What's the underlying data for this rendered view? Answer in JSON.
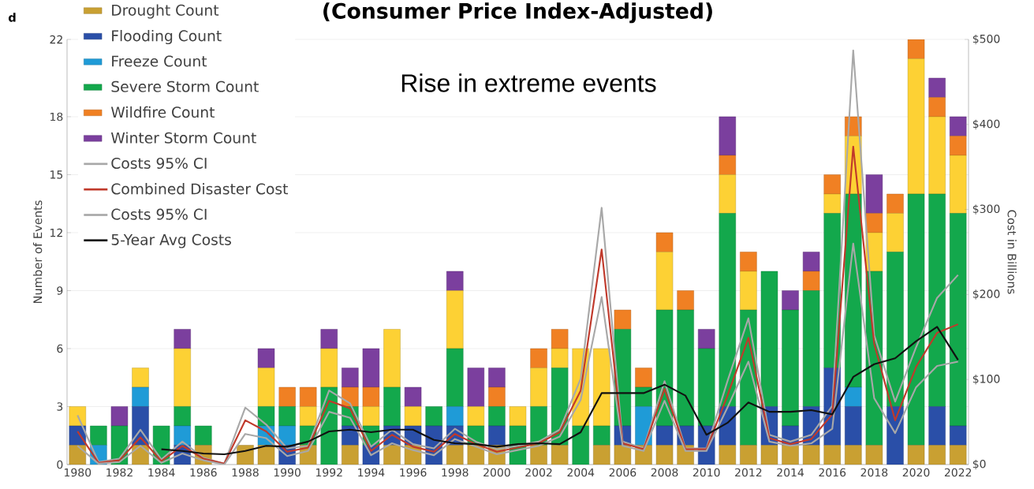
{
  "chart_data": {
    "type": "bar",
    "stacked": true,
    "title": "(Consumer Price Index-Adjusted)",
    "annotations": [
      "Rise in extreme events",
      "d"
    ],
    "ylabel": "Number of Events",
    "y2label": "Cost in Billions",
    "categories": [
      "1980",
      null,
      "1982",
      null,
      "1984",
      null,
      "1986",
      null,
      "1988",
      null,
      "1990",
      null,
      "1992",
      null,
      "1994",
      null,
      "1996",
      null,
      "1998",
      null,
      "2000",
      null,
      "2002",
      null,
      "2004",
      null,
      "2006",
      null,
      "2008",
      null,
      "2010",
      null,
      "2012",
      null,
      "2014",
      null,
      "2016",
      null,
      "2018",
      null,
      "2020",
      null,
      "2022"
    ],
    "ylim": [
      0,
      22
    ],
    "yticks": [
      0,
      3,
      6,
      9,
      12,
      15,
      18,
      22
    ],
    "y2lim": [
      0,
      500
    ],
    "y2ticks": [
      {
        "value": 0,
        "label": "$0"
      },
      {
        "value": 100,
        "label": "$100"
      },
      {
        "value": 200,
        "label": "$200"
      },
      {
        "value": 300,
        "label": "$300"
      },
      {
        "value": 400,
        "label": "$400"
      },
      {
        "value": 500,
        "label": "$500"
      }
    ],
    "grid": "y",
    "legend": "top left",
    "series": [
      {
        "name": "Drought Count",
        "type": "bar",
        "color": "#c9a032",
        "values": [
          1,
          0,
          0,
          1,
          0,
          0,
          1,
          0,
          1,
          1,
          0,
          1,
          0,
          1,
          0,
          1,
          1,
          0,
          1,
          1,
          1,
          0,
          1,
          1,
          0,
          1,
          1,
          1,
          1,
          1,
          0,
          1,
          1,
          1,
          1,
          1,
          1,
          1,
          1,
          0,
          1,
          1,
          1
        ]
      },
      {
        "name": "Flooding Count",
        "type": "bar",
        "color": "#2a4fa8",
        "values": [
          1,
          0,
          0,
          2,
          0,
          1,
          0,
          0,
          0,
          0,
          1,
          0,
          0,
          1,
          1,
          1,
          1,
          2,
          1,
          0,
          1,
          0,
          0,
          0,
          0,
          0,
          1,
          0,
          1,
          1,
          2,
          2,
          0,
          2,
          1,
          2,
          4,
          2,
          0,
          3,
          0,
          2,
          1
        ]
      },
      {
        "name": "Freeze Count",
        "type": "bar",
        "color": "#1f9bd7",
        "values": [
          0,
          1,
          0,
          1,
          0,
          1,
          0,
          0,
          0,
          1,
          1,
          0,
          0,
          0,
          0,
          0,
          0,
          0,
          1,
          0,
          0,
          0,
          0,
          0,
          0,
          0,
          0,
          2,
          0,
          0,
          0,
          0,
          0,
          0,
          0,
          0,
          0,
          1,
          0,
          0,
          0,
          0,
          0
        ]
      },
      {
        "name": "Severe Storm Count",
        "type": "bar",
        "color": "#13a84c",
        "values": [
          0,
          1,
          2,
          0,
          2,
          1,
          1,
          0,
          0,
          1,
          1,
          1,
          4,
          1,
          1,
          2,
          0,
          1,
          3,
          1,
          1,
          2,
          2,
          4,
          2,
          1,
          5,
          1,
          6,
          6,
          4,
          10,
          7,
          7,
          6,
          6,
          8,
          10,
          9,
          8,
          13,
          11,
          11
        ]
      },
      {
        "type": "bar",
        "color": "#fdd134",
        "values": [
          1,
          0,
          0,
          1,
          0,
          3,
          0,
          0,
          0,
          2,
          0,
          1,
          2,
          0,
          1,
          3,
          1,
          0,
          3,
          1,
          0,
          1,
          2,
          1,
          4,
          4,
          0,
          0,
          3,
          0,
          0,
          2,
          2,
          0,
          0,
          0,
          1,
          3,
          2,
          2,
          7,
          4,
          3
        ]
      },
      {
        "name": "Wildfire Count",
        "type": "bar",
        "color": "#f08023",
        "values": [
          0,
          0,
          0,
          0,
          0,
          0,
          0,
          0,
          0,
          0,
          1,
          1,
          0,
          1,
          1,
          0,
          0,
          0,
          0,
          0,
          1,
          0,
          1,
          1,
          0,
          0,
          1,
          1,
          1,
          1,
          0,
          1,
          1,
          0,
          0,
          1,
          1,
          1,
          1,
          1,
          1,
          1,
          1
        ]
      },
      {
        "name": "Winter Storm Count",
        "type": "bar",
        "color": "#7b3f9e",
        "values": [
          0,
          0,
          1,
          0,
          0,
          1,
          0,
          0,
          0,
          1,
          0,
          0,
          1,
          1,
          2,
          0,
          1,
          0,
          1,
          2,
          1,
          0,
          0,
          0,
          0,
          0,
          0,
          0,
          0,
          0,
          1,
          2,
          0,
          0,
          1,
          1,
          0,
          0,
          2,
          0,
          0,
          1,
          1
        ]
      },
      {
        "name": "Costs 95% CI",
        "type": "line",
        "axis": "y2",
        "color": "#a8a8a8",
        "values": [
          58,
          3,
          7,
          41,
          6,
          27,
          8,
          1,
          67,
          47,
          19,
          22,
          87,
          72,
          21,
          41,
          24,
          19,
          42,
          27,
          18,
          22,
          27,
          41,
          101,
          302,
          27,
          19,
          98,
          19,
          19,
          98,
          172,
          35,
          27,
          35,
          69,
          487,
          152,
          74,
          138,
          196,
          223
        ]
      },
      {
        "name": "Combined Disaster Cost",
        "type": "line",
        "axis": "y2",
        "color": "#c0392b",
        "values": [
          39,
          2,
          5,
          32,
          4,
          22,
          7,
          1,
          52,
          39,
          15,
          20,
          75,
          66,
          16,
          35,
          21,
          15,
          36,
          24,
          15,
          20,
          25,
          38,
          87,
          253,
          25,
          18,
          89,
          18,
          18,
          81,
          149,
          31,
          24,
          30,
          59,
          374,
          142,
          52,
          115,
          155,
          165
        ]
      },
      {
        "name": "Costs 95% CI",
        "type": "line",
        "axis": "y2",
        "color": "#a8a8a8",
        "values": [
          22,
          1,
          3,
          22,
          2,
          13,
          5,
          0,
          36,
          31,
          10,
          16,
          62,
          55,
          11,
          25,
          17,
          11,
          30,
          21,
          12,
          17,
          22,
          33,
          76,
          197,
          22,
          16,
          75,
          16,
          16,
          67,
          121,
          27,
          22,
          25,
          42,
          260,
          78,
          37,
          91,
          116,
          121
        ]
      },
      {
        "name": "5-Year Avg Costs",
        "type": "line",
        "axis": "y2",
        "color": "#111111",
        "values": [
          null,
          null,
          null,
          null,
          18,
          16,
          13,
          12,
          16,
          22,
          21,
          27,
          39,
          41,
          38,
          41,
          41,
          29,
          25,
          24,
          21,
          24,
          25,
          24,
          38,
          84,
          84,
          84,
          94,
          81,
          35,
          49,
          73,
          62,
          62,
          64,
          59,
          103,
          118,
          125,
          145,
          162,
          123
        ]
      }
    ]
  }
}
